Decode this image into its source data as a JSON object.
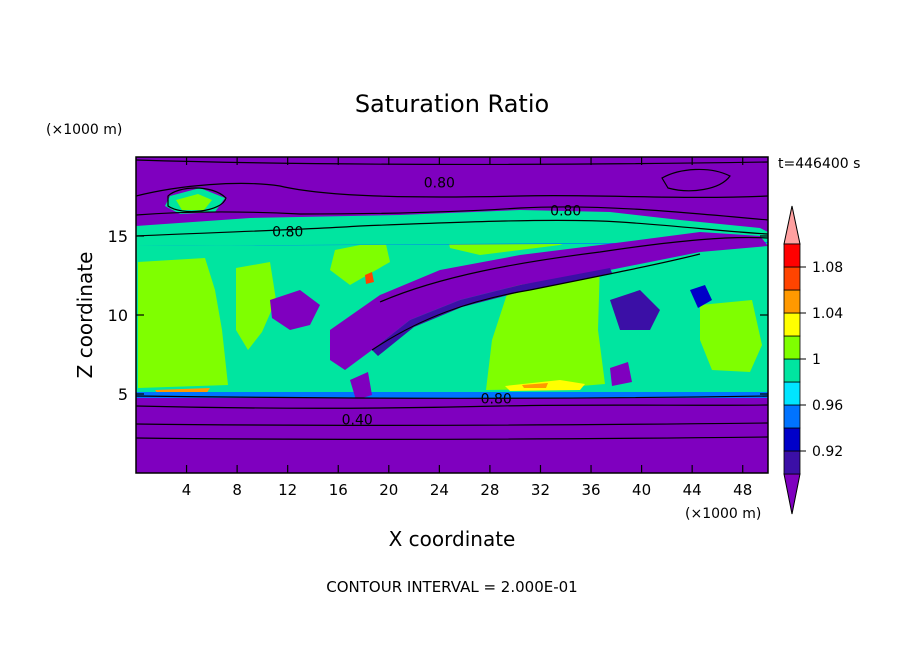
{
  "chart_data": {
    "type": "heatmap",
    "title": "Saturation Ratio",
    "xlabel": "X coordinate",
    "ylabel": "Z coordinate",
    "x_unit": "(×1000 m)",
    "y_unit": "(×1000 m)",
    "time_label": "t=446400 s",
    "footer": "CONTOUR INTERVAL = 2.000E-01",
    "xlim": [
      0,
      50
    ],
    "ylim": [
      0,
      20
    ],
    "x_ticks": [
      4,
      8,
      12,
      16,
      20,
      24,
      28,
      32,
      36,
      40,
      44,
      48
    ],
    "y_ticks": [
      5,
      10,
      15
    ],
    "colorbar": {
      "levels": [
        0.92,
        0.94,
        0.96,
        0.98,
        1.0,
        1.02,
        1.04,
        1.06,
        1.08,
        1.1
      ],
      "tick_labels": [
        "0.92",
        "0.96",
        "1",
        "1.04",
        "1.08"
      ],
      "tick_values": [
        0.92,
        0.96,
        1.0,
        1.04,
        1.08
      ],
      "colors": [
        "#7f00bf",
        "#3b0fa6",
        "#0000c8",
        "#0073ff",
        "#00e5ff",
        "#00e5a0",
        "#7fff00",
        "#ffff00",
        "#ff9900",
        "#ff4400",
        "#ff0000",
        "#ffa0a0"
      ]
    },
    "contour_labels": [
      {
        "text": "0.80",
        "x": 24.0,
        "y": 18.4
      },
      {
        "text": "0.80",
        "x": 12.0,
        "y": 15.3
      },
      {
        "text": "0.80",
        "x": 34.0,
        "y": 16.6
      },
      {
        "text": "0.80",
        "x": 28.5,
        "y": 4.7
      },
      {
        "text": "0.40",
        "x": 17.5,
        "y": 3.4
      }
    ]
  }
}
